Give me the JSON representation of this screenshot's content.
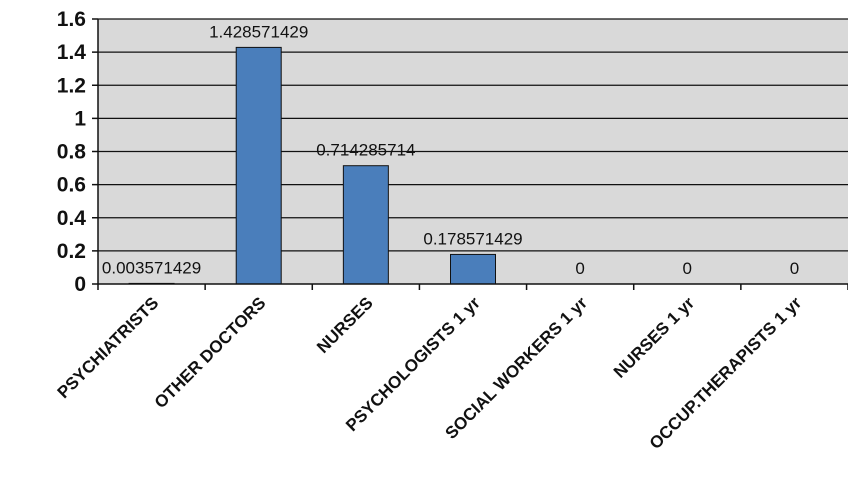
{
  "chart_data": {
    "type": "bar",
    "categories": [
      "PSYCHIATRISTS",
      "OTHER DOCTORS",
      "NURSES",
      "PSYCHOLOGISTS 1 yr",
      "SOCIAL WORKERS 1 yr",
      "NURSES 1  yr",
      "OCCUP.THERAPISTS 1 yr"
    ],
    "values": [
      0.003571429,
      1.428571429,
      0.714285714,
      0.178571429,
      0,
      0,
      0
    ],
    "data_labels": [
      "0.003571429",
      "1.428571429",
      "0.714285714",
      "0.178571429",
      "0",
      "0",
      "0"
    ],
    "y_ticks": [
      "0",
      "0.2",
      "0.4",
      "0.6",
      "0.8",
      "1",
      "1.2",
      "1.4",
      "1.6"
    ],
    "ylim": [
      0,
      1.6
    ],
    "grid": true,
    "title": "",
    "xlabel": "",
    "ylabel": "",
    "colors": {
      "bar": "#4a7ebb",
      "bar_border": "#111111",
      "plot_background": "#d9d9d9",
      "gridline": "#111111"
    }
  }
}
